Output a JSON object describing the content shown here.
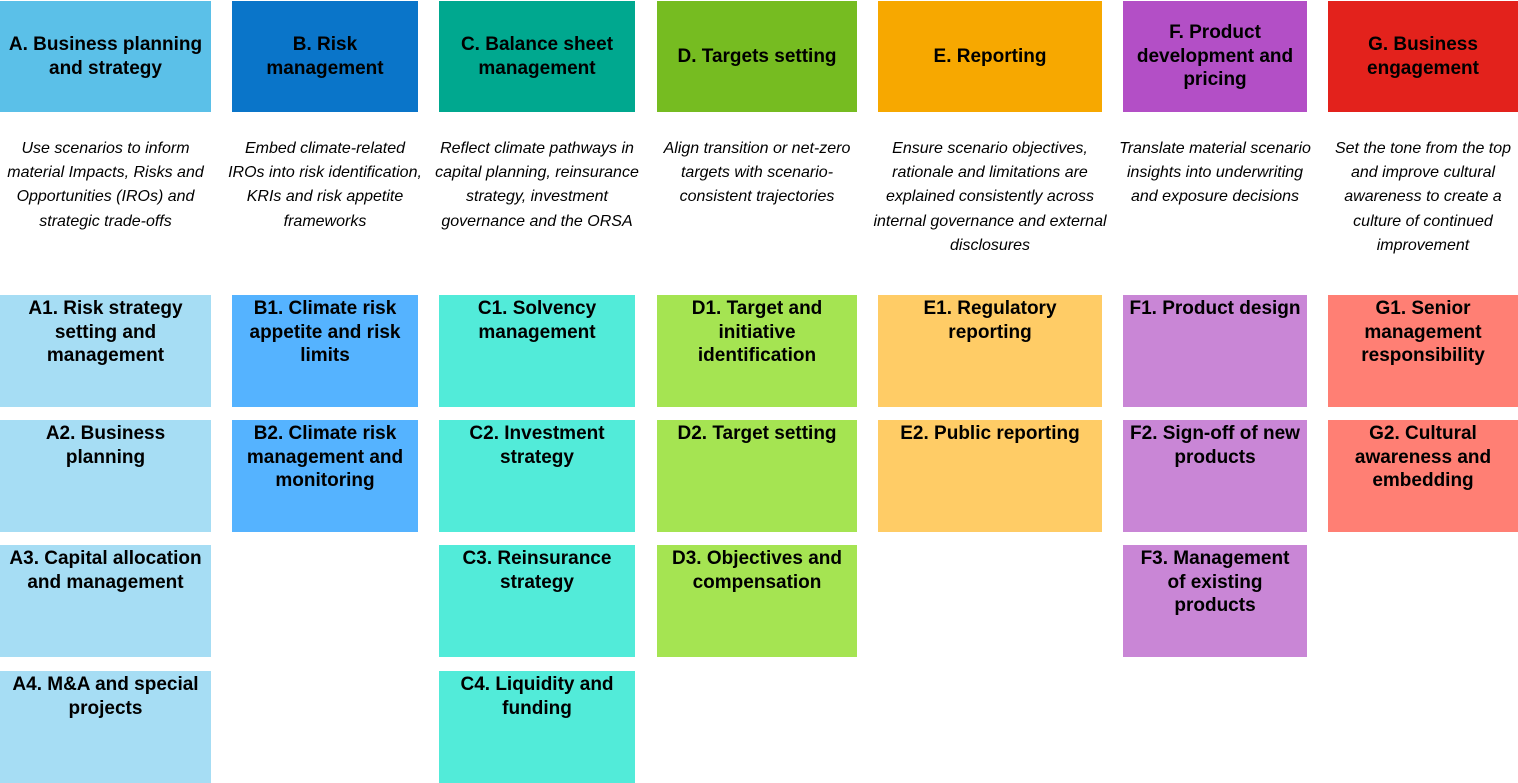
{
  "columns": [
    {
      "id": "a",
      "header": "A. Business planning and strategy",
      "header_color": "#5BC0E8",
      "card_color": "#A6DDF4",
      "header_light_text": false,
      "description": "Use scenarios to inform material Impacts, Risks and Opportunities (IROs) and strategic trade-offs",
      "items": [
        "A1. Risk strategy setting and management",
        "A2. Business planning",
        "A3. Capital allocation and management",
        "A4. M&A and special projects"
      ]
    },
    {
      "id": "b",
      "header": "B. Risk management",
      "header_color": "#0A75C9",
      "card_color": "#55B3FF",
      "header_light_text": false,
      "description": "Embed climate-related IROs into risk identification, KRIs and risk appetite frameworks",
      "items": [
        "B1. Climate risk appetite and risk limits",
        "B2. Climate risk management and monitoring"
      ]
    },
    {
      "id": "c",
      "header": "C. Balance sheet management",
      "header_color": "#00A88F",
      "card_color": "#52EBD9",
      "header_light_text": false,
      "description": "Reflect climate pathways in capital planning, reinsurance strategy, investment governance and the ORSA",
      "items": [
        "C1. Solvency management",
        "C2. Investment strategy",
        "C3. Reinsurance strategy",
        "C4. Liquidity and funding"
      ]
    },
    {
      "id": "d",
      "header": "D. Targets setting",
      "header_color": "#76BC21",
      "card_color": "#A5E452",
      "header_light_text": false,
      "description": "Align transition or net-zero targets with scenario-consistent trajectories",
      "items": [
        "D1. Target and initiative identification",
        "D2. Target setting",
        "D3. Objectives and compensation"
      ]
    },
    {
      "id": "e",
      "header": "E. Reporting",
      "header_color": "#F7A800",
      "card_color": "#FFCC66",
      "header_light_text": false,
      "description": "Ensure scenario objectives, rationale and limitations are explained consistently across internal governance and external disclosures",
      "items": [
        "E1. Regulatory reporting",
        "E2. Public reporting"
      ]
    },
    {
      "id": "f",
      "header": "F. Product development and pricing",
      "header_color": "#B34FC6",
      "card_color": "#C986D6",
      "header_light_text": false,
      "description": "Translate material scenario insights into underwriting and exposure decisions",
      "items": [
        "F1. Product design",
        "F2. Sign-off of new products",
        "F3. Management of existing products"
      ]
    },
    {
      "id": "g",
      "header": "G. Business engagement",
      "header_color": "#E3221C",
      "card_color": "#FF7F74",
      "header_light_text": false,
      "description": "Set the tone from the top and improve cultural awareness to create a culture of continued improvement",
      "items": [
        "G1. Senior management responsibility",
        "G2. Cultural awareness and embedding"
      ]
    }
  ]
}
